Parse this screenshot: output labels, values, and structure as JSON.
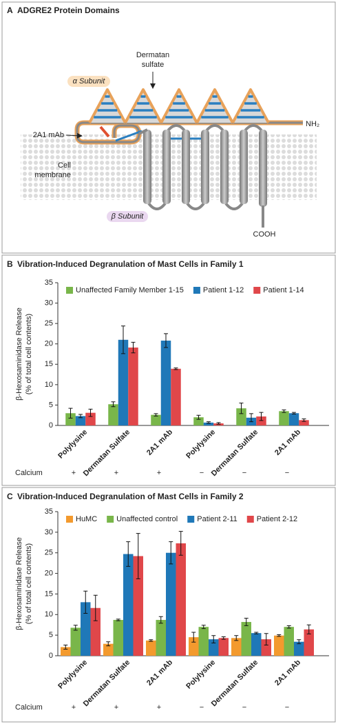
{
  "panel_a": {
    "letter": "A",
    "title": "ADGRE2 Protein Domains",
    "dermatan_label": [
      "Dermatan",
      "sulfate"
    ],
    "alpha_label": "α Subunit",
    "nh2_label": "NH₂",
    "mab_label": "2A1 mAb",
    "membrane_label": [
      "Cell",
      "membrane"
    ],
    "beta_label": "β Subunit",
    "cooh_label": "COOH"
  },
  "chart_data": [
    {
      "type": "bar",
      "panel": "B",
      "title": "Vibration-Induced Degranulation of Mast Cells in Family 1",
      "y_label": [
        "β-Hexosaminidase Release",
        "(% of total cell contents)"
      ],
      "categories": [
        "Polylysine",
        "Dermatan Sulfate",
        "2A1 mAb",
        "Polylysine",
        "Dermatan Sulfate",
        "2A1 mAb"
      ],
      "calcium_label": "Calcium",
      "calcium": [
        "+",
        "+",
        "+",
        "−",
        "−",
        "−"
      ],
      "series": [
        {
          "name": "Unaffected Family Member 1-15",
          "color": "#79b64a",
          "values": [
            3.0,
            5.2,
            2.6,
            2.0,
            4.2,
            3.5
          ],
          "errors": [
            1.2,
            0.6,
            0.3,
            0.5,
            1.3,
            0.3
          ]
        },
        {
          "name": "Patient 1-12",
          "color": "#1f78b8",
          "values": [
            2.3,
            21.0,
            20.8,
            0.7,
            1.9,
            3.0
          ],
          "errors": [
            0.4,
            3.4,
            1.7,
            0.2,
            1.0,
            0.2
          ]
        },
        {
          "name": "Patient 1-14",
          "color": "#e0474a",
          "values": [
            3.1,
            19.1,
            13.9,
            0.5,
            2.2,
            1.3
          ],
          "errors": [
            0.9,
            1.3,
            0.2,
            0.2,
            1.0,
            0.3
          ]
        }
      ],
      "ylim": [
        0,
        35
      ],
      "yticks": [
        0,
        5,
        10,
        15,
        20,
        25,
        30,
        35
      ]
    },
    {
      "type": "bar",
      "panel": "C",
      "title": "Vibration-Induced Degranulation of Mast Cells in Family 2",
      "y_label": [
        "β-Hexosaminidase Release",
        "(% of total cell contents)"
      ],
      "categories": [
        "Polylysine",
        "Dermatan Sulfate",
        "2A1 mAb",
        "Polylysine",
        "Dermatan Sulfate",
        "2A1 mAb"
      ],
      "calcium_label": "Calcium",
      "calcium": [
        "+",
        "+",
        "+",
        "−",
        "−",
        "−"
      ],
      "series": [
        {
          "name": "HuMC",
          "color": "#f39a2e",
          "values": [
            2.1,
            2.9,
            3.7,
            4.5,
            4.3,
            4.9
          ],
          "errors": [
            0.5,
            0.5,
            0.2,
            1.2,
            0.6,
            0.2
          ]
        },
        {
          "name": "Unaffected control",
          "color": "#79b64a",
          "values": [
            6.8,
            8.7,
            8.7,
            7.0,
            8.2,
            7.0
          ],
          "errors": [
            0.6,
            0.2,
            0.8,
            0.4,
            0.9,
            0.3
          ]
        },
        {
          "name": "Patient 2-11",
          "color": "#1f78b8",
          "values": [
            13.0,
            24.7,
            25.0,
            4.0,
            5.5,
            3.4
          ],
          "errors": [
            2.7,
            3.0,
            2.7,
            0.9,
            0.2,
            0.5
          ]
        },
        {
          "name": "Patient 2-12",
          "color": "#e0474a",
          "values": [
            11.6,
            24.2,
            27.3,
            4.3,
            4.0,
            6.4
          ],
          "errors": [
            3.1,
            5.5,
            2.9,
            0.3,
            1.4,
            1.1
          ]
        }
      ],
      "ylim": [
        0,
        35
      ],
      "yticks": [
        0,
        5,
        10,
        15,
        20,
        25,
        30,
        35
      ]
    }
  ]
}
